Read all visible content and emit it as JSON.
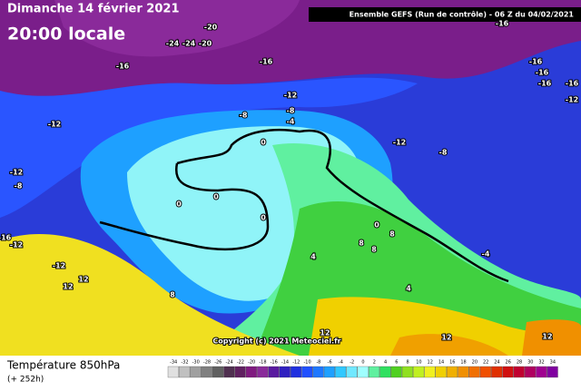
{
  "header": {
    "date": "Dimanche 14 février 2021",
    "time": "20:00 locale",
    "run": "Ensemble GEFS  (Run de contrôle) - 06 Z du 04/02/2021"
  },
  "map": {
    "contour_labels": [
      "-20",
      "-24",
      "-24",
      "-20",
      "-16",
      "-16",
      "-16",
      "-16",
      "-16",
      "-16",
      "-16",
      "-12",
      "-12",
      "-12",
      "-12",
      "-8",
      "-8",
      "-4",
      "0",
      "-8",
      "-8",
      "-12",
      "0",
      "0",
      "0",
      "-16",
      "-12",
      "-12",
      "12",
      "12",
      "8",
      "4",
      "0",
      "8",
      "8",
      "8",
      "-4",
      "4",
      "12",
      "12",
      "12"
    ],
    "copyright": "Copyright (c) 2021 Meteociel.fr"
  },
  "footer": {
    "title": "Température 850hPa",
    "lead": "(+ 252h)"
  },
  "scale": {
    "ticks": [
      -34,
      -32,
      -30,
      -28,
      -26,
      -24,
      -22,
      -20,
      -18,
      -16,
      -14,
      -12,
      -10,
      -8,
      -6,
      -4,
      -2,
      0,
      2,
      4,
      6,
      8,
      10,
      12,
      14,
      16,
      18,
      20,
      22,
      24,
      26,
      28,
      30,
      32,
      34
    ],
    "colors": [
      "#e0e0e0",
      "#c0c0c0",
      "#a0a0a0",
      "#808080",
      "#606060",
      "#503050",
      "#602060",
      "#801a80",
      "#8a2a9a",
      "#5a1aa0",
      "#3020c0",
      "#2030e0",
      "#2050ff",
      "#1e78ff",
      "#1ea0ff",
      "#30c8ff",
      "#70e8ff",
      "#a0ffff",
      "#60f0a0",
      "#30e060",
      "#50d020",
      "#90e020",
      "#c0f020",
      "#f0f020",
      "#f0d000",
      "#f0b000",
      "#f09000",
      "#f07000",
      "#f05000",
      "#e03000",
      "#d01010",
      "#c00030",
      "#b00060",
      "#a00090",
      "#8000a0"
    ]
  }
}
